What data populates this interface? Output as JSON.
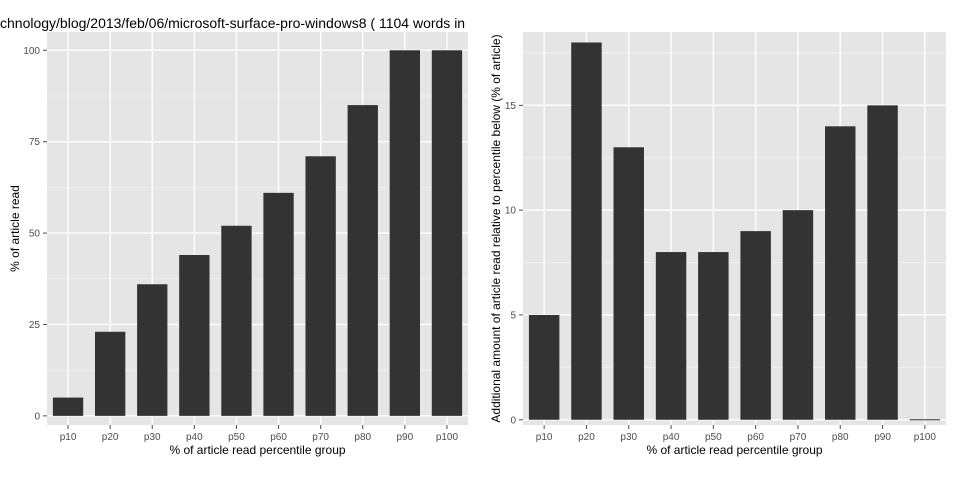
{
  "chart_data": [
    {
      "type": "bar",
      "title": "chnology/blog/2013/feb/06/microsoft-surface-pro-windows8 ( 1104 words in",
      "xlabel": "% of article read percentile group",
      "ylabel": "% of article read",
      "categories": [
        "p10",
        "p20",
        "p30",
        "p40",
        "p50",
        "p60",
        "p70",
        "p80",
        "p90",
        "p100"
      ],
      "values": [
        5,
        23,
        36,
        44,
        52,
        61,
        71,
        85,
        100,
        100
      ],
      "ylim": [
        -2.5,
        105
      ],
      "yticks": [
        0,
        25,
        50,
        75,
        100
      ],
      "grid": true,
      "colors": {
        "panel": "#e5e5e5",
        "grid_major": "#ffffff",
        "grid_minor": "#f2f2f2",
        "bar": "#333333"
      }
    },
    {
      "type": "bar",
      "title": "",
      "xlabel": "% of article read percentile group",
      "ylabel": "Additional amount of article read relative to percentile below (% of article)",
      "categories": [
        "p10",
        "p20",
        "p30",
        "p40",
        "p50",
        "p60",
        "p70",
        "p80",
        "p90",
        "p100"
      ],
      "values": [
        5,
        18,
        13,
        8,
        8,
        9,
        10,
        14,
        15,
        0
      ],
      "ylim": [
        -0.25,
        18.5
      ],
      "yticks": [
        0,
        5,
        10,
        15
      ],
      "grid": true,
      "colors": {
        "panel": "#e5e5e5",
        "grid_major": "#ffffff",
        "grid_minor": "#f2f2f2",
        "bar": "#333333"
      }
    }
  ]
}
